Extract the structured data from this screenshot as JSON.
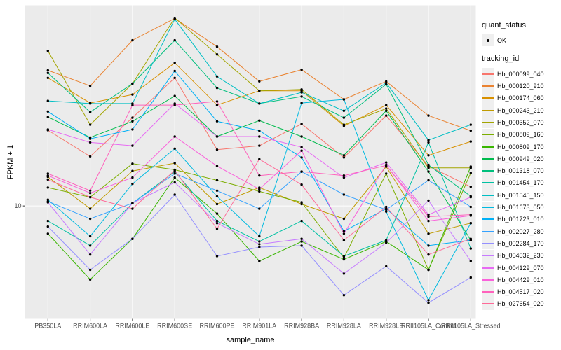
{
  "chart_data": {
    "type": "line",
    "title": "",
    "xlabel": "sample_name",
    "ylabel": "FPKM + 1",
    "y_scale": "log10",
    "ylim_log10": [
      0.4686,
      1.9439
    ],
    "y_ticks": [
      {
        "label": "10",
        "value": 10
      }
    ],
    "grid": "major",
    "panel_bg": "#EBEBEB",
    "grid_color": "#FFFFFF",
    "point_color": "#000000",
    "axis_text_color": "#4D4D4D",
    "tick_color": "#333333",
    "categories": [
      "PB350LA",
      "RRIM600LA",
      "RRIM600LE",
      "RRIM600SE",
      "RRIM600PE",
      "RRIM901LA",
      "RRIM928BA",
      "RRIM928LA",
      "RRIM928LE",
      "RRII105LA_Control",
      "RRII105LA_Stressed"
    ],
    "legend": {
      "position": "right",
      "quant_status_title": "quant_status",
      "quant_status_items": [
        "OK"
      ],
      "tracking_id_title": "tracking_id"
    },
    "series": [
      {
        "name": "Hb_000099_040",
        "color": "#F8766D",
        "values": [
          22.7,
          17.1,
          26,
          40,
          18.4,
          19.2,
          24.3,
          16.9,
          26.6,
          15.4,
          12.3
        ]
      },
      {
        "name": "Hb_000120_910",
        "color": "#EA8331",
        "values": [
          43.4,
          36.7,
          60.1,
          76.2,
          56.1,
          38.5,
          43.7,
          31.7,
          38.5,
          26.6,
          22.6
        ]
      },
      {
        "name": "Hb_000174_060",
        "color": "#D89000",
        "values": [
          40,
          30.5,
          33.4,
          47.1,
          29.8,
          34.8,
          34.8,
          23.8,
          29.8,
          17.3,
          20.1
        ]
      },
      {
        "name": "Hb_000243_210",
        "color": "#C09B00",
        "values": [
          13.7,
          9.7,
          14.6,
          15.9,
          10.2,
          12.2,
          10.2,
          8.7,
          15.3,
          7.4,
          8.3
        ]
      },
      {
        "name": "Hb_000352_070",
        "color": "#A3A500",
        "values": [
          53.6,
          24.1,
          37.6,
          76.6,
          51.6,
          34.8,
          35.3,
          24.1,
          28.7,
          15.1,
          15.1
        ]
      },
      {
        "name": "Hb_000809_160",
        "color": "#7CAE00",
        "values": [
          12.2,
          11,
          15.8,
          14.8,
          13.2,
          11.7,
          10.4,
          5.7,
          14.2,
          5,
          14.3
        ]
      },
      {
        "name": "Hb_000809_170",
        "color": "#39B600",
        "values": [
          7.4,
          4.5,
          7,
          13.6,
          9.2,
          5.5,
          6.8,
          5.6,
          6.8,
          5,
          15.3
        ]
      },
      {
        "name": "Hb_000949_020",
        "color": "#00BB4E",
        "values": [
          26.2,
          21,
          25,
          32.9,
          21.2,
          25.2,
          21.2,
          17.3,
          28,
          14.5,
          6.9
        ]
      },
      {
        "name": "Hb_001318_070",
        "color": "#00BF7D",
        "values": [
          42.2,
          27.6,
          37.6,
          60.1,
          35.9,
          30.3,
          32.7,
          26,
          37.3,
          15.6,
          11.1
        ]
      },
      {
        "name": "Hb_001454_170",
        "color": "#00C1A3",
        "values": [
          8.5,
          6.5,
          10.3,
          14.5,
          8.5,
          6.8,
          8.5,
          5.8,
          6.9,
          19.9,
          6.3
        ]
      },
      {
        "name": "Hb_001545_150",
        "color": "#00BFC4",
        "values": [
          31.2,
          30.3,
          30.3,
          75.5,
          40.6,
          30.3,
          34.2,
          28,
          37.9,
          20.4,
          24.1
        ]
      },
      {
        "name": "Hb_001673_050",
        "color": "#00BAE0",
        "values": [
          10.7,
          7.2,
          12.7,
          18.6,
          11.1,
          7.2,
          30.5,
          31.7,
          9.4,
          3.6,
          8.3
        ]
      },
      {
        "name": "Hb_001723_010",
        "color": "#00B0F6",
        "values": [
          27.8,
          20.7,
          22.9,
          43.1,
          25,
          22.6,
          16.9,
          7.6,
          9.7,
          6.5,
          6.9
        ]
      },
      {
        "name": "Hb_002027_280",
        "color": "#35A2FF",
        "values": [
          10.5,
          8.7,
          10.3,
          14.2,
          11.8,
          9.7,
          14.5,
          11.3,
          9.6,
          13.2,
          9.9
        ]
      },
      {
        "name": "Hb_002284_170",
        "color": "#9590FF",
        "values": [
          8,
          5,
          7,
          11.3,
          5.8,
          6.4,
          6.5,
          3.8,
          5.2,
          3.5,
          4.6
        ]
      },
      {
        "name": "Hb_004032_230",
        "color": "#C77CFF",
        "values": [
          10.4,
          5.9,
          10.3,
          12.9,
          8.3,
          6.6,
          7,
          4.8,
          6.7,
          10.6,
          5.5
        ]
      },
      {
        "name": "Hb_004129_070",
        "color": "#E76BF3",
        "values": [
          22.9,
          19.9,
          19.2,
          30.3,
          21.2,
          21.2,
          18.9,
          13.6,
          16,
          9.1,
          11
        ]
      },
      {
        "name": "Hb_004429_010",
        "color": "#FA62DB",
        "values": [
          13.9,
          11.5,
          13.6,
          21.2,
          15.4,
          12,
          18.2,
          7.4,
          15.6,
          8.5,
          9
        ]
      },
      {
        "name": "Hb_004517_020",
        "color": "#FF62BC",
        "values": [
          14.2,
          11.8,
          29.8,
          29.8,
          31,
          13.9,
          14.5,
          13.9,
          15.5,
          8.9,
          9.1
        ]
      },
      {
        "name": "Hb_027654_020",
        "color": "#FF6A98",
        "values": [
          13.3,
          11,
          9.7,
          14.7,
          7.8,
          16.6,
          12.6,
          6.9,
          9.9,
          5.9,
          7
        ]
      }
    ]
  }
}
